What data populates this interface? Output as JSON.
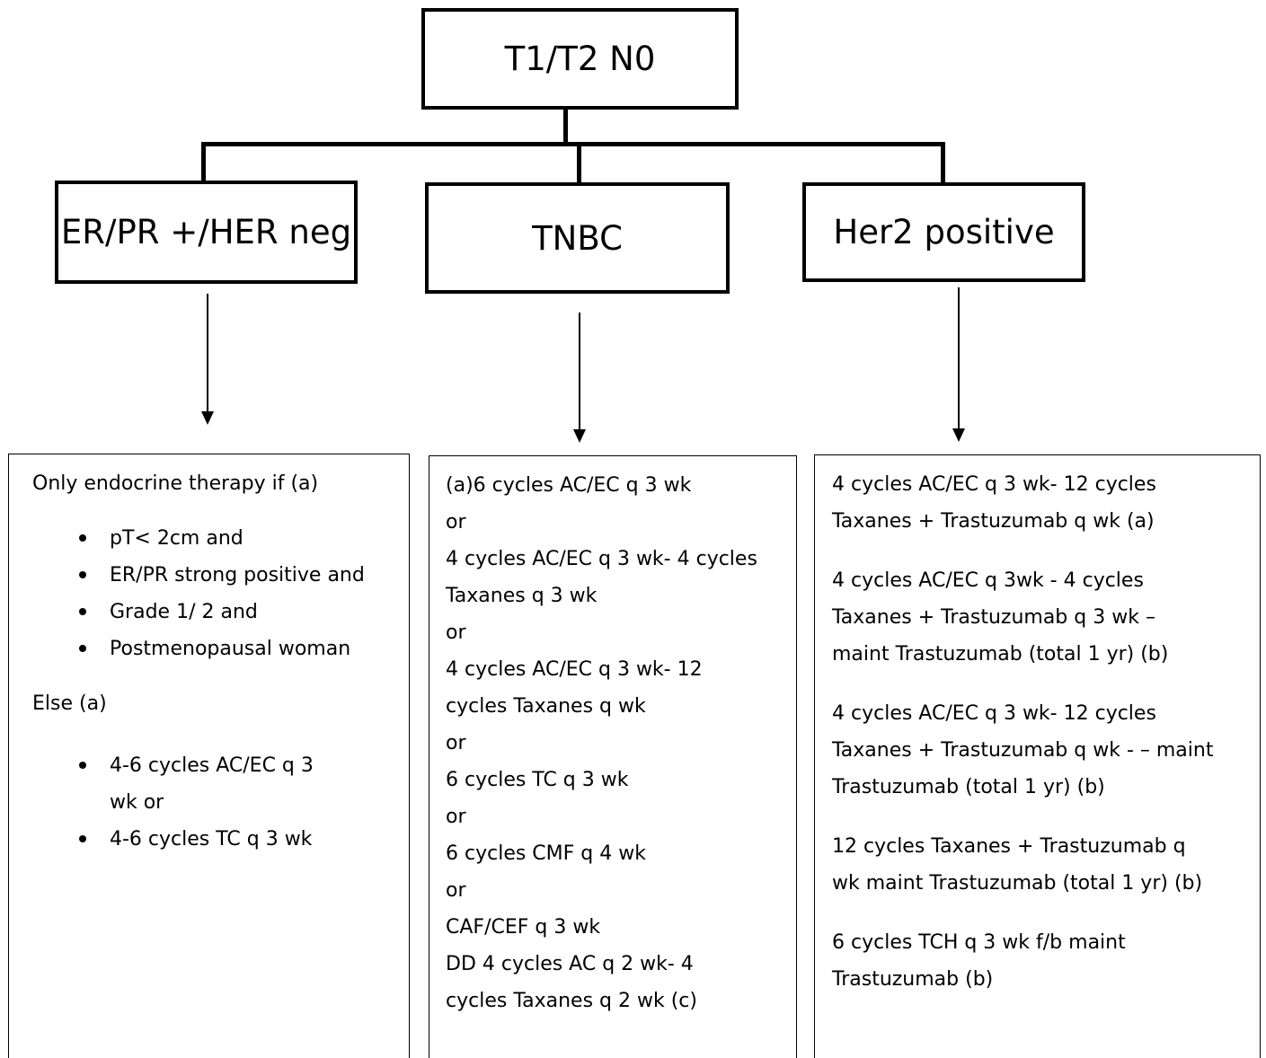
{
  "root": {
    "label": "T1/T2 N0"
  },
  "categories": [
    {
      "label": "ER/PR +/HER neg"
    },
    {
      "label": "TNBC"
    },
    {
      "label": "Her2 positive"
    }
  ],
  "er_panel": {
    "intro": "Only endocrine therapy if (a)",
    "conditions": [
      "pT< 2cm and",
      "ER/PR strong positive and",
      "Grade 1/ 2 and",
      "Postmenopausal woman"
    ],
    "else_label": "Else (a)",
    "else_items": [
      "4-6 cycles AC/EC  q 3 wk or",
      "4-6 cycles TC q 3 wk"
    ]
  },
  "tnbc_panel": {
    "lines": [
      "(a)6 cycles AC/EC q 3 wk",
      "or",
      "4 cycles AC/EC q 3 wk- 4 cycles",
      "Taxanes q 3 wk",
      "or",
      "4 cycles  AC/EC q 3 wk- 12",
      "cycles Taxanes q wk",
      "or",
      "6  cycles TC q 3 wk",
      "or",
      "6 cycles  CMF q 4 wk",
      "or",
      "CAF/CEF q 3 wk",
      "DD 4  cycles AC q 2 wk- 4",
      "cycles Taxanes q 2 wk   (c)"
    ]
  },
  "her2_panel": {
    "regimens": [
      [
        "4 cycles AC/EC q 3 wk- 12 cycles",
        "Taxanes + Trastuzumab q wk (a)"
      ],
      [
        "4 cycles AC/EC q 3wk - 4  cycles",
        "Taxanes + Trastuzumab q 3 wk  –",
        "maint Trastuzumab (total 1 yr) (b)"
      ],
      [
        "4 cycles AC/EC q 3 wk- 12 cycles",
        "Taxanes + Trastuzumab q wk - – maint",
        "Trastuzumab (total 1 yr) (b)"
      ],
      [
        "12 cycles  Taxanes + Trastuzumab q",
        "wk   maint Trastuzumab (total 1 yr) (b)"
      ],
      [
        "6 cycles TCH q 3 wk f/b maint",
        "Trastuzumab (b)"
      ]
    ]
  }
}
